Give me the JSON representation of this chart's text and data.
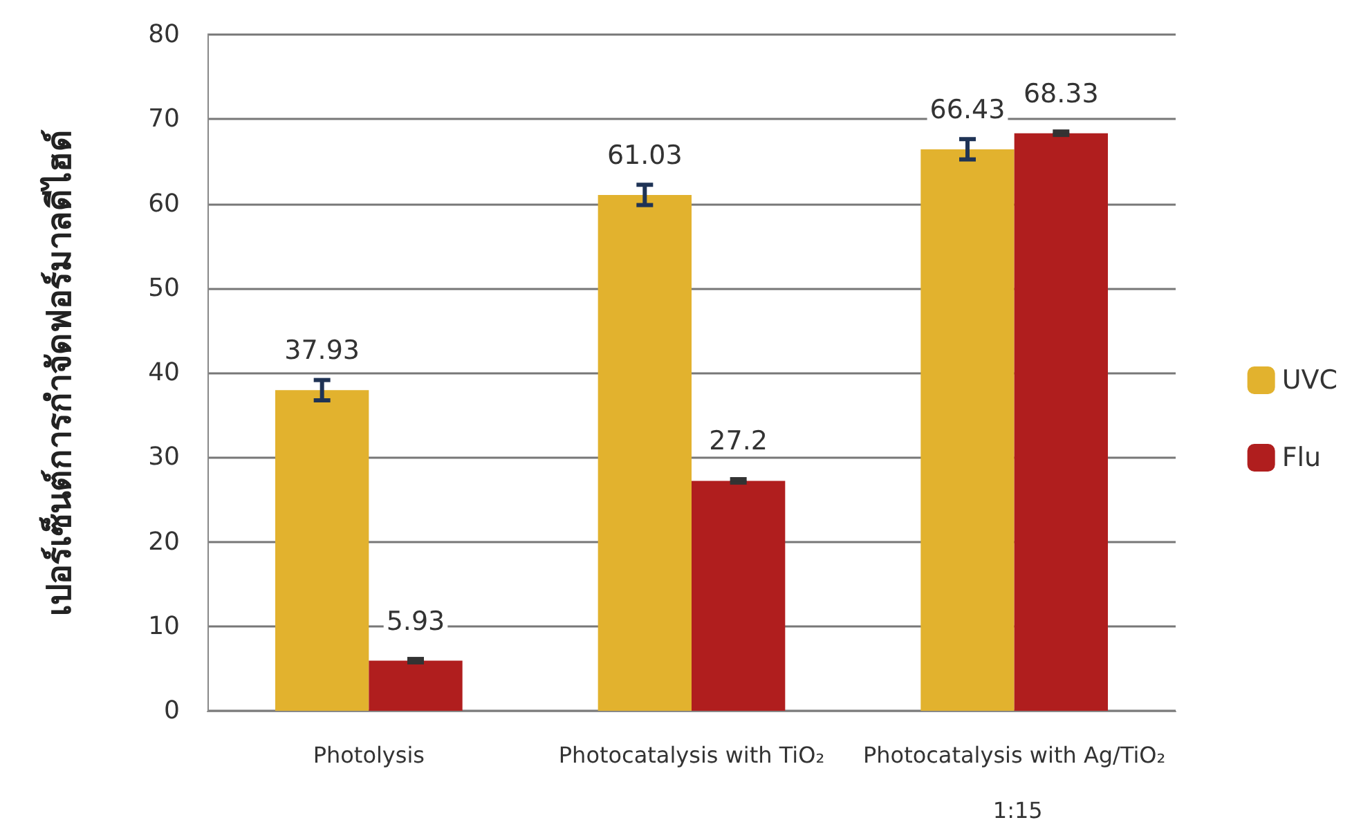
{
  "chart_data": {
    "type": "bar",
    "ylabel": "เปอร์เซ็นต์การกำจัดฟอร์มาลดีไฮด์",
    "categories": [
      "Photolysis",
      "Photocatalysis with TiO₂",
      "Photocatalysis with Ag/TiO₂ 1:15"
    ],
    "series": [
      {
        "name": "UVC",
        "color": "#e2b22e",
        "values": [
          37.93,
          61.03,
          66.43
        ],
        "errors": [
          1.2,
          1.2,
          1.2
        ]
      },
      {
        "name": "Flu",
        "color": "#b01e1e",
        "values": [
          5.93,
          27.2,
          68.33
        ],
        "errors": [
          0.2,
          0.2,
          0.2
        ]
      }
    ],
    "data_labels": true,
    "ylim": [
      0,
      80
    ],
    "yticks": [
      0,
      10,
      20,
      30,
      40,
      50,
      60,
      70,
      80
    ],
    "grid": "y",
    "legend": "right"
  }
}
